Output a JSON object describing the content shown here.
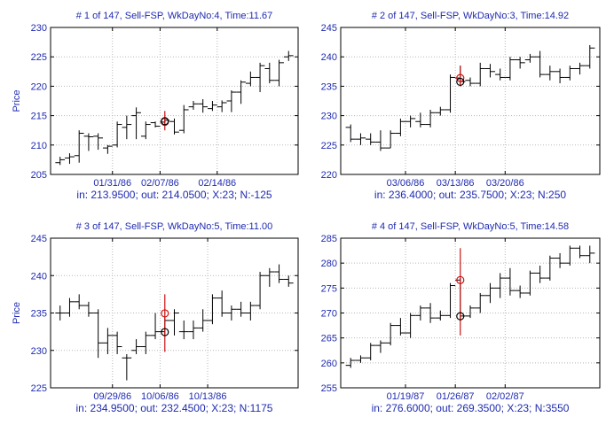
{
  "colors": {
    "text": "#1f2bb0",
    "frame": "#000000",
    "grid": "#b8b8b8",
    "bar": "#000000",
    "signal_in": "#cc1111",
    "signal_out": "#000000",
    "range": "#cc1111"
  },
  "chart_data": [
    {
      "type": "ohlc",
      "title": "# 1 of 147, Sell-FSP, WkDayNo:4, Time:11.67",
      "subtitle": "in: 213.9500; out: 214.0500; X:23; N:-125",
      "ylabel": "Price",
      "ylim": [
        205,
        230
      ],
      "yticks": [
        205,
        210,
        215,
        220,
        225,
        230
      ],
      "xlim": [
        0,
        26
      ],
      "xticks": [
        {
          "x": 6.5,
          "label": "01/31/86"
        },
        {
          "x": 11.5,
          "label": "02/07/86"
        },
        {
          "x": 17.5,
          "label": "02/14/86"
        }
      ],
      "grid": true,
      "bars": [
        {
          "x": 1,
          "o": 207.0,
          "h": 208.0,
          "l": 206.6,
          "c": 207.5
        },
        {
          "x": 2,
          "o": 207.8,
          "h": 208.6,
          "l": 206.8,
          "c": 208.0
        },
        {
          "x": 3,
          "o": 208.2,
          "h": 212.5,
          "l": 207.0,
          "c": 212.0
        },
        {
          "x": 4,
          "o": 211.5,
          "h": 212.0,
          "l": 209.0,
          "c": 211.4
        },
        {
          "x": 5,
          "o": 211.5,
          "h": 212.0,
          "l": 209.2,
          "c": 211.2
        },
        {
          "x": 6,
          "o": 209.5,
          "h": 210.0,
          "l": 208.5,
          "c": 209.8
        },
        {
          "x": 7,
          "o": 210.0,
          "h": 214.0,
          "l": 209.6,
          "c": 213.5
        },
        {
          "x": 8,
          "o": 213.0,
          "h": 215.0,
          "l": 211.0,
          "c": 213.5
        },
        {
          "x": 9,
          "o": 215.0,
          "h": 216.4,
          "l": 211.0,
          "c": 215.5
        },
        {
          "x": 10,
          "o": 211.5,
          "h": 214.0,
          "l": 211.0,
          "c": 213.5
        },
        {
          "x": 11,
          "o": 213.8,
          "h": 214.0,
          "l": 213.0,
          "c": 213.2
        },
        {
          "x": 12,
          "o": 213.9,
          "h": 214.6,
          "l": 213.5,
          "c": 214.2
        },
        {
          "x": 13,
          "o": 214.0,
          "h": 214.5,
          "l": 211.8,
          "c": 212.2
        },
        {
          "x": 14,
          "o": 212.5,
          "h": 216.8,
          "l": 212.0,
          "c": 216.0
        },
        {
          "x": 15,
          "o": 216.5,
          "h": 217.5,
          "l": 216.0,
          "c": 217.0
        },
        {
          "x": 16,
          "o": 217.0,
          "h": 217.8,
          "l": 215.5,
          "c": 216.5
        },
        {
          "x": 17,
          "o": 216.2,
          "h": 217.5,
          "l": 215.8,
          "c": 216.8
        },
        {
          "x": 18,
          "o": 216.5,
          "h": 217.6,
          "l": 215.6,
          "c": 217.2
        },
        {
          "x": 19,
          "o": 217.5,
          "h": 219.3,
          "l": 215.6,
          "c": 219.0
        },
        {
          "x": 20,
          "o": 219.0,
          "h": 221.0,
          "l": 217.0,
          "c": 220.7
        },
        {
          "x": 21,
          "o": 220.5,
          "h": 222.5,
          "l": 220.0,
          "c": 221.5
        },
        {
          "x": 22,
          "o": 221.5,
          "h": 224.0,
          "l": 219.0,
          "c": 223.5
        },
        {
          "x": 23,
          "o": 223.0,
          "h": 224.0,
          "l": 220.5,
          "c": 221.0
        },
        {
          "x": 24,
          "o": 221.0,
          "h": 224.5,
          "l": 220.0,
          "c": 224.0
        },
        {
          "x": 25,
          "o": 225.0,
          "h": 226.0,
          "l": 224.3,
          "c": 225.2
        }
      ],
      "signal": {
        "x": 12,
        "in": 213.95,
        "out": 214.05,
        "range": [
          212.5,
          215.8
        ]
      }
    },
    {
      "type": "ohlc",
      "title": "# 2 of 147, Sell-FSP, WkDayNo:3, Time:14.92",
      "subtitle": "in: 236.4000; out: 235.7500; X:23; N:250",
      "ylabel": "",
      "ylim": [
        220,
        245
      ],
      "yticks": [
        220,
        225,
        230,
        235,
        240,
        245
      ],
      "xlim": [
        0,
        26
      ],
      "xticks": [
        {
          "x": 6.5,
          "label": "03/06/86"
        },
        {
          "x": 11.5,
          "label": "03/13/86"
        },
        {
          "x": 16.5,
          "label": "03/20/86"
        }
      ],
      "grid": true,
      "bars": [
        {
          "x": 1,
          "o": 228.0,
          "h": 228.5,
          "l": 225.5,
          "c": 226.0
        },
        {
          "x": 2,
          "o": 226.0,
          "h": 227.0,
          "l": 225.0,
          "c": 226.2
        },
        {
          "x": 3,
          "o": 226.0,
          "h": 227.0,
          "l": 225.0,
          "c": 225.5
        },
        {
          "x": 4,
          "o": 225.5,
          "h": 227.5,
          "l": 224.0,
          "c": 224.5
        },
        {
          "x": 5,
          "o": 224.5,
          "h": 227.5,
          "l": 224.5,
          "c": 227.0
        },
        {
          "x": 6,
          "o": 227.0,
          "h": 229.5,
          "l": 226.5,
          "c": 229.0
        },
        {
          "x": 7,
          "o": 229.0,
          "h": 230.0,
          "l": 228.0,
          "c": 229.5
        },
        {
          "x": 8,
          "o": 229.0,
          "h": 230.5,
          "l": 228.0,
          "c": 228.5
        },
        {
          "x": 9,
          "o": 228.5,
          "h": 231.0,
          "l": 228.0,
          "c": 230.5
        },
        {
          "x": 10,
          "o": 230.5,
          "h": 231.5,
          "l": 230.0,
          "c": 231.0
        },
        {
          "x": 11,
          "o": 231.0,
          "h": 237.0,
          "l": 230.5,
          "c": 236.5
        },
        {
          "x": 12,
          "o": 236.4,
          "h": 238.5,
          "l": 235.0,
          "c": 235.8
        },
        {
          "x": 13,
          "o": 236.0,
          "h": 236.5,
          "l": 235.0,
          "c": 235.5
        },
        {
          "x": 14,
          "o": 235.5,
          "h": 239.0,
          "l": 235.0,
          "c": 238.0
        },
        {
          "x": 15,
          "o": 238.0,
          "h": 238.8,
          "l": 236.5,
          "c": 237.5
        },
        {
          "x": 16,
          "o": 237.0,
          "h": 238.0,
          "l": 236.0,
          "c": 236.5
        },
        {
          "x": 17,
          "o": 236.5,
          "h": 240.0,
          "l": 236.0,
          "c": 239.5
        },
        {
          "x": 18,
          "o": 239.5,
          "h": 240.0,
          "l": 238.0,
          "c": 239.0
        },
        {
          "x": 19,
          "o": 239.5,
          "h": 240.5,
          "l": 239.0,
          "c": 240.0
        },
        {
          "x": 20,
          "o": 240.0,
          "h": 241.0,
          "l": 236.5,
          "c": 237.0
        },
        {
          "x": 21,
          "o": 237.0,
          "h": 238.5,
          "l": 236.0,
          "c": 237.5
        },
        {
          "x": 22,
          "o": 237.5,
          "h": 238.0,
          "l": 235.5,
          "c": 236.5
        },
        {
          "x": 23,
          "o": 236.5,
          "h": 238.5,
          "l": 236.0,
          "c": 238.0
        },
        {
          "x": 24,
          "o": 238.0,
          "h": 239.0,
          "l": 237.0,
          "c": 238.5
        },
        {
          "x": 25,
          "o": 238.5,
          "h": 242.0,
          "l": 238.0,
          "c": 241.5
        }
      ],
      "signal": {
        "x": 12,
        "in": 236.4,
        "out": 235.75,
        "range": [
          235.0,
          238.5
        ]
      }
    },
    {
      "type": "ohlc",
      "title": "# 3 of 147, Sell-FSP, WkDayNo:5, Time:11.00",
      "subtitle": "in: 234.9500; out: 232.4500; X:23; N:1175",
      "ylabel": "Price",
      "ylim": [
        225,
        245
      ],
      "yticks": [
        225,
        230,
        235,
        240,
        245
      ],
      "xlim": [
        0,
        26
      ],
      "xticks": [
        {
          "x": 6.5,
          "label": "09/29/86"
        },
        {
          "x": 11.5,
          "label": "10/06/86"
        },
        {
          "x": 16.5,
          "label": "10/13/86"
        }
      ],
      "grid": true,
      "bars": [
        {
          "x": 1,
          "o": 235.0,
          "h": 236.0,
          "l": 234.0,
          "c": 235.0
        },
        {
          "x": 2,
          "o": 235.0,
          "h": 237.0,
          "l": 234.5,
          "c": 236.5
        },
        {
          "x": 3,
          "o": 236.5,
          "h": 237.5,
          "l": 235.5,
          "c": 236.0
        },
        {
          "x": 4,
          "o": 236.0,
          "h": 236.5,
          "l": 234.5,
          "c": 235.0
        },
        {
          "x": 5,
          "o": 235.0,
          "h": 235.5,
          "l": 229.0,
          "c": 231.0
        },
        {
          "x": 6,
          "o": 231.0,
          "h": 233.0,
          "l": 229.5,
          "c": 232.0
        },
        {
          "x": 7,
          "o": 232.0,
          "h": 232.5,
          "l": 229.5,
          "c": 230.5
        },
        {
          "x": 8,
          "o": 229.0,
          "h": 229.5,
          "l": 226.0,
          "c": 229.0
        },
        {
          "x": 9,
          "o": 230.0,
          "h": 231.5,
          "l": 229.5,
          "c": 230.5
        },
        {
          "x": 10,
          "o": 230.5,
          "h": 232.5,
          "l": 229.5,
          "c": 232.0
        },
        {
          "x": 11,
          "o": 232.0,
          "h": 235.0,
          "l": 231.5,
          "c": 232.5
        },
        {
          "x": 12,
          "o": 232.5,
          "h": 234.5,
          "l": 232.0,
          "c": 234.0
        },
        {
          "x": 13,
          "o": 234.0,
          "h": 235.5,
          "l": 232.0,
          "c": 235.0
        },
        {
          "x": 14,
          "o": 232.5,
          "h": 234.0,
          "l": 231.5,
          "c": 232.5
        },
        {
          "x": 15,
          "o": 232.5,
          "h": 234.0,
          "l": 231.5,
          "c": 233.0
        },
        {
          "x": 16,
          "o": 233.0,
          "h": 235.5,
          "l": 232.5,
          "c": 234.0
        },
        {
          "x": 17,
          "o": 234.0,
          "h": 237.5,
          "l": 233.5,
          "c": 237.0
        },
        {
          "x": 18,
          "o": 237.0,
          "h": 238.0,
          "l": 234.5,
          "c": 235.0
        },
        {
          "x": 19,
          "o": 235.0,
          "h": 236.0,
          "l": 234.0,
          "c": 235.5
        },
        {
          "x": 20,
          "o": 235.5,
          "h": 236.5,
          "l": 234.5,
          "c": 235.0
        },
        {
          "x": 21,
          "o": 235.0,
          "h": 236.5,
          "l": 234.0,
          "c": 236.0
        },
        {
          "x": 22,
          "o": 236.0,
          "h": 240.5,
          "l": 235.5,
          "c": 240.0
        },
        {
          "x": 23,
          "o": 240.0,
          "h": 241.0,
          "l": 238.5,
          "c": 240.5
        },
        {
          "x": 24,
          "o": 240.5,
          "h": 241.5,
          "l": 239.0,
          "c": 239.5
        },
        {
          "x": 25,
          "o": 239.5,
          "h": 240.0,
          "l": 238.5,
          "c": 239.0
        }
      ],
      "signal": {
        "x": 12,
        "in": 234.95,
        "out": 232.45,
        "range": [
          229.8,
          237.5
        ]
      }
    },
    {
      "type": "ohlc",
      "title": "# 4 of 147, Sell-FSP, WkDayNo:5, Time:14.58",
      "subtitle": "in: 276.6000; out: 269.3500; X:23; N:3550",
      "ylabel": "",
      "ylim": [
        255,
        285
      ],
      "yticks": [
        255,
        260,
        265,
        270,
        275,
        280,
        285
      ],
      "xlim": [
        0,
        26
      ],
      "xticks": [
        {
          "x": 6.5,
          "label": "01/19/87"
        },
        {
          "x": 11.5,
          "label": "01/26/87"
        },
        {
          "x": 16.5,
          "label": "02/02/87"
        }
      ],
      "grid": true,
      "bars": [
        {
          "x": 1,
          "o": 259.5,
          "h": 261.0,
          "l": 259.0,
          "c": 260.5
        },
        {
          "x": 2,
          "o": 260.5,
          "h": 261.5,
          "l": 260.0,
          "c": 261.0
        },
        {
          "x": 3,
          "o": 261.0,
          "h": 264.0,
          "l": 260.5,
          "c": 263.5
        },
        {
          "x": 4,
          "o": 263.5,
          "h": 264.5,
          "l": 262.0,
          "c": 264.0
        },
        {
          "x": 5,
          "o": 264.0,
          "h": 268.0,
          "l": 263.5,
          "c": 267.5
        },
        {
          "x": 6,
          "o": 267.5,
          "h": 269.0,
          "l": 265.5,
          "c": 266.0
        },
        {
          "x": 7,
          "o": 266.0,
          "h": 270.0,
          "l": 265.0,
          "c": 269.5
        },
        {
          "x": 8,
          "o": 269.5,
          "h": 271.5,
          "l": 268.5,
          "c": 271.0
        },
        {
          "x": 9,
          "o": 271.0,
          "h": 272.0,
          "l": 268.0,
          "c": 269.0
        },
        {
          "x": 10,
          "o": 269.0,
          "h": 270.5,
          "l": 268.5,
          "c": 269.5
        },
        {
          "x": 11,
          "o": 269.5,
          "h": 276.0,
          "l": 269.0,
          "c": 275.5
        },
        {
          "x": 12,
          "o": 276.6,
          "h": 277.0,
          "l": 268.5,
          "c": 269.4
        },
        {
          "x": 13,
          "o": 269.4,
          "h": 271.5,
          "l": 269.0,
          "c": 271.0
        },
        {
          "x": 14,
          "o": 271.0,
          "h": 274.0,
          "l": 270.0,
          "c": 273.5
        },
        {
          "x": 15,
          "o": 273.5,
          "h": 276.0,
          "l": 272.0,
          "c": 275.0
        },
        {
          "x": 16,
          "o": 275.0,
          "h": 278.0,
          "l": 273.0,
          "c": 277.0
        },
        {
          "x": 17,
          "o": 277.0,
          "h": 279.0,
          "l": 273.5,
          "c": 274.5
        },
        {
          "x": 18,
          "o": 274.5,
          "h": 275.5,
          "l": 273.0,
          "c": 274.0
        },
        {
          "x": 19,
          "o": 274.0,
          "h": 278.5,
          "l": 273.5,
          "c": 278.0
        },
        {
          "x": 20,
          "o": 278.0,
          "h": 279.5,
          "l": 276.0,
          "c": 277.0
        },
        {
          "x": 21,
          "o": 277.0,
          "h": 281.5,
          "l": 276.5,
          "c": 281.0
        },
        {
          "x": 22,
          "o": 281.0,
          "h": 282.0,
          "l": 279.0,
          "c": 280.0
        },
        {
          "x": 23,
          "o": 280.0,
          "h": 283.5,
          "l": 279.5,
          "c": 283.0
        },
        {
          "x": 24,
          "o": 283.0,
          "h": 283.5,
          "l": 281.0,
          "c": 281.5
        },
        {
          "x": 25,
          "o": 281.5,
          "h": 283.5,
          "l": 280.0,
          "c": 282.0
        }
      ],
      "signal": {
        "x": 12,
        "in": 276.6,
        "out": 269.35,
        "range": [
          265.5,
          283.0
        ]
      }
    }
  ]
}
